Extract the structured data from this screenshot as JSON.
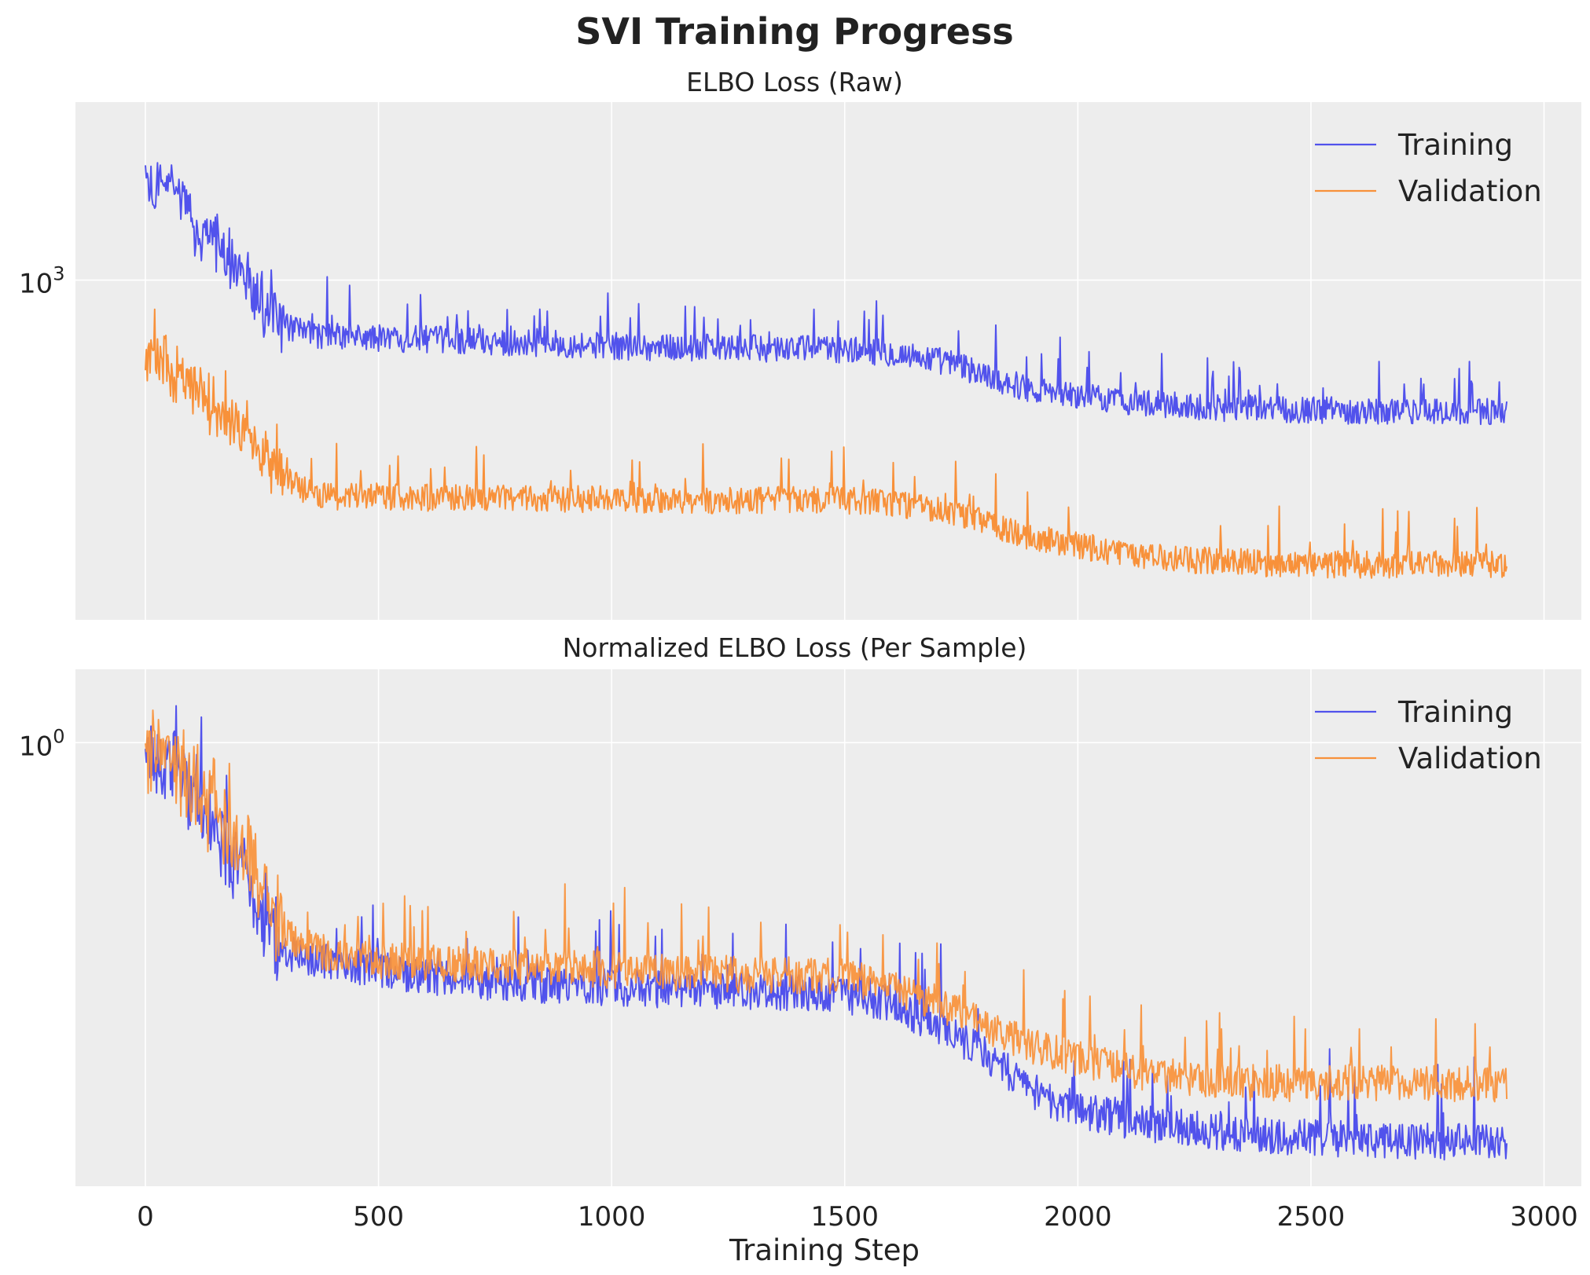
{
  "suptitle": "SVI Training Progress",
  "colors": {
    "training": "#5152ec",
    "validation": "#f8913a",
    "panel_bg": "#ededed",
    "grid": "#ffffff"
  },
  "chart_data": [
    {
      "type": "line",
      "title": "ELBO Loss (Raw)",
      "xlabel": "",
      "ylabel": "",
      "y_scale": "log",
      "y_ticks": [
        {
          "value": 1000,
          "base": "10",
          "exp": "3"
        }
      ],
      "x_ticks": [
        0,
        500,
        1000,
        1500,
        2000,
        2500,
        3000
      ],
      "show_x_tick_labels": false,
      "xlim": [
        -150,
        3080
      ],
      "ylim": [
        285,
        1930
      ],
      "grid": true,
      "legend": "top-right",
      "series": [
        {
          "name": "Training",
          "color": "#5152ec",
          "noise": 0.05,
          "points": [
            [
              0,
              1400
            ],
            [
              40,
              1450
            ],
            [
              80,
              1320
            ],
            [
              120,
              1200
            ],
            [
              160,
              1120
            ],
            [
              200,
              1050
            ],
            [
              240,
              940
            ],
            [
              280,
              860
            ],
            [
              320,
              830
            ],
            [
              380,
              815
            ],
            [
              450,
              810
            ],
            [
              500,
              808
            ],
            [
              600,
              805
            ],
            [
              700,
              800
            ],
            [
              800,
              795
            ],
            [
              900,
              790
            ],
            [
              1000,
              785
            ],
            [
              1100,
              780
            ],
            [
              1200,
              780
            ],
            [
              1300,
              778
            ],
            [
              1400,
              778
            ],
            [
              1500,
              775
            ],
            [
              1600,
              765
            ],
            [
              1700,
              745
            ],
            [
              1750,
              728
            ],
            [
              1800,
              705
            ],
            [
              1850,
              685
            ],
            [
              1900,
              670
            ],
            [
              1950,
              660
            ],
            [
              2000,
              652
            ],
            [
              2100,
              640
            ],
            [
              2200,
              630
            ],
            [
              2300,
              625
            ],
            [
              2400,
              622
            ],
            [
              2500,
              620
            ],
            [
              2600,
              618
            ],
            [
              2700,
              616
            ],
            [
              2800,
              615
            ],
            [
              2920,
              615
            ]
          ]
        },
        {
          "name": "Validation",
          "color": "#f8913a",
          "noise": 0.05,
          "points": [
            [
              0,
              760
            ],
            [
              40,
              740
            ],
            [
              80,
              700
            ],
            [
              120,
              660
            ],
            [
              160,
              620
            ],
            [
              200,
              590
            ],
            [
              240,
              540
            ],
            [
              280,
              500
            ],
            [
              320,
              470
            ],
            [
              360,
              455
            ],
            [
              400,
              450
            ],
            [
              500,
              450
            ],
            [
              600,
              448
            ],
            [
              700,
              448
            ],
            [
              800,
              447
            ],
            [
              900,
              446
            ],
            [
              1000,
              445
            ],
            [
              1200,
              444
            ],
            [
              1400,
              444
            ],
            [
              1500,
              444
            ],
            [
              1600,
              438
            ],
            [
              1700,
              428
            ],
            [
              1800,
              408
            ],
            [
              1850,
              398
            ],
            [
              1900,
              387
            ],
            [
              2000,
              375
            ],
            [
              2100,
              365
            ],
            [
              2200,
              358
            ],
            [
              2300,
              354
            ],
            [
              2400,
              352
            ],
            [
              2500,
              350
            ],
            [
              2600,
              350
            ],
            [
              2700,
              350
            ],
            [
              2800,
              350
            ],
            [
              2920,
              350
            ]
          ]
        }
      ]
    },
    {
      "type": "line",
      "title": "Normalized ELBO Loss (Per Sample)",
      "xlabel": "Training Step",
      "ylabel": "",
      "y_scale": "log",
      "y_ticks": [
        {
          "value": 1,
          "base": "10",
          "exp": "0"
        }
      ],
      "x_ticks": [
        0,
        500,
        1000,
        1500,
        2000,
        2500,
        3000
      ],
      "show_x_tick_labels": true,
      "xlim": [
        -150,
        3080
      ],
      "ylim": [
        0.3,
        1.22
      ],
      "grid": true,
      "legend": "top-right",
      "series": [
        {
          "name": "Training",
          "color": "#5152ec",
          "noise": 0.05,
          "points": [
            [
              0,
              0.95
            ],
            [
              40,
              0.97
            ],
            [
              80,
              0.9
            ],
            [
              120,
              0.84
            ],
            [
              160,
              0.78
            ],
            [
              200,
              0.72
            ],
            [
              240,
              0.64
            ],
            [
              280,
              0.59
            ],
            [
              320,
              0.56
            ],
            [
              400,
              0.55
            ],
            [
              500,
              0.54
            ],
            [
              600,
              0.53
            ],
            [
              800,
              0.52
            ],
            [
              1000,
              0.515
            ],
            [
              1200,
              0.51
            ],
            [
              1400,
              0.508
            ],
            [
              1500,
              0.505
            ],
            [
              1600,
              0.49
            ],
            [
              1700,
              0.465
            ],
            [
              1800,
              0.43
            ],
            [
              1850,
              0.41
            ],
            [
              1900,
              0.39
            ],
            [
              1950,
              0.378
            ],
            [
              2000,
              0.37
            ],
            [
              2100,
              0.36
            ],
            [
              2200,
              0.353
            ],
            [
              2300,
              0.348
            ],
            [
              2400,
              0.345
            ],
            [
              2500,
              0.343
            ],
            [
              2600,
              0.341
            ],
            [
              2700,
              0.34
            ],
            [
              2800,
              0.339
            ],
            [
              2920,
              0.338
            ]
          ]
        },
        {
          "name": "Validation",
          "color": "#f8913a",
          "noise": 0.05,
          "points": [
            [
              0,
              0.98
            ],
            [
              40,
              1.0
            ],
            [
              80,
              0.93
            ],
            [
              120,
              0.87
            ],
            [
              160,
              0.82
            ],
            [
              200,
              0.77
            ],
            [
              240,
              0.69
            ],
            [
              280,
              0.62
            ],
            [
              320,
              0.59
            ],
            [
              400,
              0.56
            ],
            [
              500,
              0.555
            ],
            [
              600,
              0.55
            ],
            [
              800,
              0.545
            ],
            [
              1000,
              0.54
            ],
            [
              1200,
              0.535
            ],
            [
              1400,
              0.532
            ],
            [
              1500,
              0.53
            ],
            [
              1600,
              0.515
            ],
            [
              1700,
              0.495
            ],
            [
              1800,
              0.465
            ],
            [
              1900,
              0.44
            ],
            [
              2000,
              0.425
            ],
            [
              2100,
              0.412
            ],
            [
              2200,
              0.404
            ],
            [
              2300,
              0.4
            ],
            [
              2400,
              0.398
            ],
            [
              2500,
              0.397
            ],
            [
              2600,
              0.397
            ],
            [
              2700,
              0.397
            ],
            [
              2800,
              0.397
            ],
            [
              2920,
              0.397
            ]
          ]
        }
      ]
    }
  ]
}
